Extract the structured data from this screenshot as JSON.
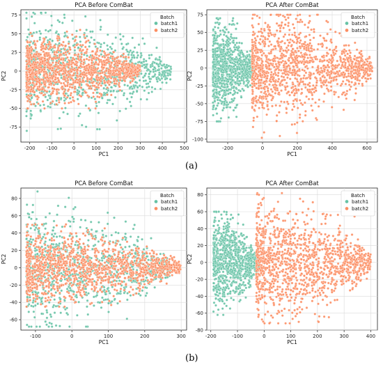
{
  "figure": {
    "panel_labels": [
      "(a)",
      "(b)"
    ]
  },
  "colors": {
    "batch1": "#66c2a5",
    "batch2": "#fc8d62"
  },
  "chart_data": [
    {
      "type": "scatter",
      "title": "PCA Before ComBat",
      "xlabel": "PC1",
      "ylabel": "PC2",
      "xlim": [
        -240,
        510
      ],
      "ylim": [
        -95,
        82
      ],
      "xticks": [
        -200,
        -100,
        0,
        100,
        200,
        300,
        400,
        500
      ],
      "yticks": [
        -75,
        -50,
        -25,
        0,
        25,
        50,
        75
      ],
      "grid": true,
      "legend": {
        "title": "Batch",
        "placement": "top-right"
      },
      "series": [
        {
          "name": "batch1",
          "color": "#66c2a5",
          "cloud": {
            "x_range": [
              -215,
              440
            ],
            "y_spread": [
              -80,
              78
            ],
            "center_y": 0
          }
        },
        {
          "name": "batch2",
          "color": "#fc8d62",
          "cloud": {
            "x_range": [
              -215,
              300
            ],
            "y_spread": [
              -50,
              55
            ],
            "center_y": 0
          }
        }
      ]
    },
    {
      "type": "scatter",
      "title": "PCA After ComBat",
      "xlabel": "PC1",
      "ylabel": "PC2",
      "xlim": [
        -320,
        660
      ],
      "ylim": [
        -104,
        82
      ],
      "xticks": [
        -200,
        0,
        200,
        400,
        600
      ],
      "yticks": [
        -100,
        -75,
        -50,
        -25,
        0,
        25,
        50,
        75
      ],
      "grid": true,
      "legend": {
        "title": "Batch",
        "placement": "top-right"
      },
      "series": [
        {
          "name": "batch1",
          "color": "#66c2a5",
          "cloud": {
            "x_range": [
              -285,
              -50
            ],
            "y_spread": [
              -75,
              70
            ],
            "center_y": 0
          }
        },
        {
          "name": "batch2",
          "color": "#fc8d62",
          "cloud": {
            "x_range": [
              -60,
              630
            ],
            "y_spread": [
              -98,
              75
            ],
            "center_y": 0
          }
        }
      ]
    },
    {
      "type": "scatter",
      "title": "PCA Before ComBat",
      "xlabel": "PC1",
      "ylabel": "PC2",
      "xlim": [
        -140,
        315
      ],
      "ylim": [
        -72,
        92
      ],
      "xticks": [
        -100,
        0,
        100,
        200,
        300
      ],
      "yticks": [
        -60,
        -40,
        -20,
        0,
        20,
        40,
        60,
        80
      ],
      "grid": true,
      "legend": {
        "title": "Batch",
        "placement": "top-right"
      },
      "series": [
        {
          "name": "batch1",
          "color": "#66c2a5",
          "cloud": {
            "x_range": [
              -125,
              270
            ],
            "y_spread": [
              -68,
              88
            ],
            "center_y": 0
          }
        },
        {
          "name": "batch2",
          "color": "#fc8d62",
          "cloud": {
            "x_range": [
              -125,
              300
            ],
            "y_spread": [
              -45,
              50
            ],
            "center_y": 0
          }
        }
      ]
    },
    {
      "type": "scatter",
      "title": "PCA After ComBat",
      "xlabel": "PC1",
      "ylabel": "PC2",
      "xlim": [
        -215,
        425
      ],
      "ylim": [
        -80,
        88
      ],
      "xticks": [
        -200,
        -100,
        0,
        100,
        200,
        300,
        400
      ],
      "yticks": [
        -80,
        -60,
        -40,
        -20,
        0,
        20,
        40,
        60,
        80
      ],
      "grid": true,
      "legend": {
        "title": "Batch",
        "placement": "top-right"
      },
      "series": [
        {
          "name": "batch1",
          "color": "#66c2a5",
          "cloud": {
            "x_range": [
              -190,
              -20
            ],
            "y_spread": [
              -62,
              60
            ],
            "center_y": 0
          }
        },
        {
          "name": "batch2",
          "color": "#fc8d62",
          "cloud": {
            "x_range": [
              -30,
              400
            ],
            "y_spread": [
              -72,
              82
            ],
            "center_y": 0
          }
        }
      ]
    }
  ]
}
